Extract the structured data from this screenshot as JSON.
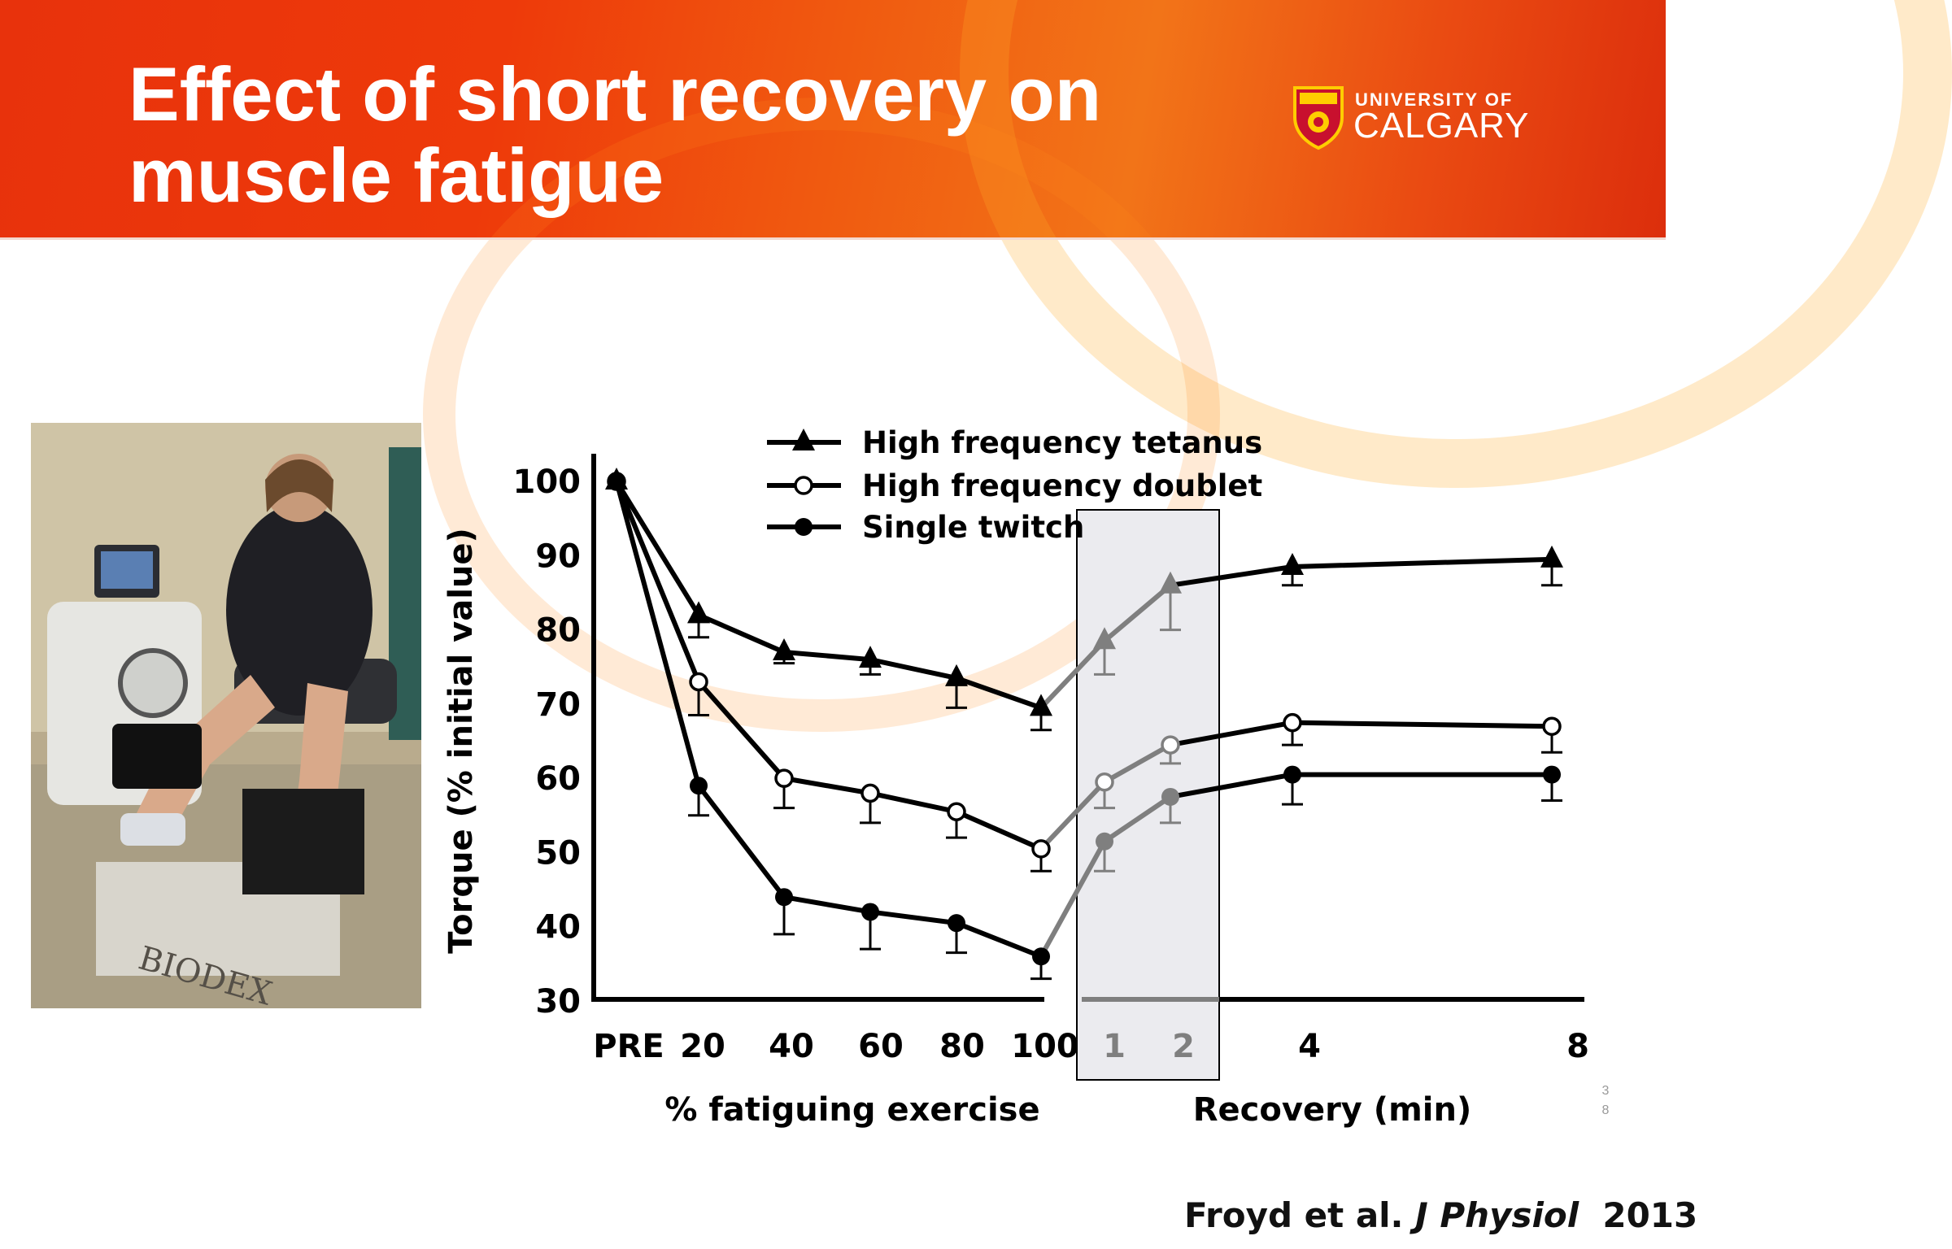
{
  "slide": {
    "title": "Effect of short recovery on muscle fatigue",
    "logo": {
      "line1": "UNIVERSITY OF",
      "line2": "CALGARY"
    },
    "photo_caption_text": "BIODEX",
    "slide_number": "38",
    "citation": {
      "authors": "Froyd et al.",
      "journal": "J Physiol",
      "year": "2013"
    }
  },
  "colors": {
    "header_red": "#e8320c",
    "header_orange": "#f27418",
    "series_black": "#000000",
    "series_gray_recovery": "#7f7f7f",
    "shade_box": "#ebebef"
  },
  "chart_data": {
    "type": "line",
    "ylabel": "Torque (% initial value)",
    "ylim": [
      30,
      100
    ],
    "yticks": [
      "100",
      "90",
      "80",
      "70",
      "60",
      "50",
      "40",
      "30"
    ],
    "ytick_values": [
      100,
      90,
      80,
      70,
      60,
      50,
      40,
      30
    ],
    "x_groups": [
      {
        "label": "% fatiguing exercise",
        "ticks": [
          "PRE",
          "20",
          "40",
          "60",
          "80",
          "100"
        ]
      },
      {
        "label": "Recovery (min)",
        "ticks": [
          "1",
          "2",
          "4",
          "8"
        ]
      }
    ],
    "categories": [
      "PRE",
      "20",
      "40",
      "60",
      "80",
      "100",
      "1",
      "2",
      "4",
      "8"
    ],
    "gray_tick_labels": [
      "1",
      "2"
    ],
    "shaded_region": [
      "1",
      "2"
    ],
    "legend_position": "top-center",
    "series": [
      {
        "name": "High frequency tetanus",
        "marker": "triangle",
        "values": [
          100,
          82,
          77,
          76,
          73.5,
          69.5,
          78.5,
          86,
          88.5,
          89.5
        ],
        "errors": [
          0,
          3,
          1.5,
          2,
          4,
          3,
          4.5,
          6,
          2.5,
          3.5
        ]
      },
      {
        "name": "High frequency doublet",
        "marker": "open-circle",
        "values": [
          100,
          73,
          60,
          58,
          55.5,
          50.5,
          59.5,
          64.5,
          67.5,
          67
        ],
        "errors": [
          0,
          4.5,
          4,
          4,
          3.5,
          3,
          3.5,
          2.5,
          3,
          3.5
        ]
      },
      {
        "name": "Single twitch",
        "marker": "filled-circle",
        "values": [
          100,
          59,
          44,
          42,
          40.5,
          36,
          51.5,
          57.5,
          60.5,
          60.5
        ],
        "errors": [
          0,
          4,
          5,
          5,
          4,
          3,
          4,
          3.5,
          4,
          3.5
        ]
      }
    ]
  }
}
